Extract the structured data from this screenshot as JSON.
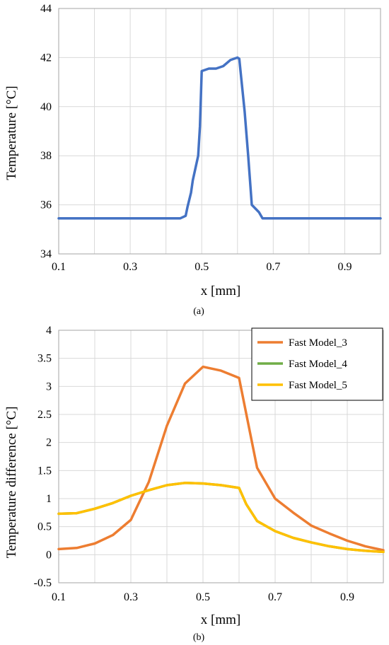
{
  "chart_data": [
    {
      "type": "line",
      "xlabel": "x [mm]",
      "ylabel": "Temperature [°C]",
      "caption": "(a)",
      "xlim": [
        0.1,
        1.0
      ],
      "ylim": [
        34,
        44
      ],
      "xticks": [
        0.1,
        0.3,
        0.5,
        0.7,
        0.9
      ],
      "yticks": [
        34,
        36,
        38,
        40,
        42,
        44
      ],
      "grid": true,
      "legend": "none",
      "series": [
        {
          "color": "#4472C4",
          "x": [
            0.1,
            0.44,
            0.455,
            0.46,
            0.47,
            0.475,
            0.49,
            0.495,
            0.5,
            0.52,
            0.54,
            0.56,
            0.58,
            0.6,
            0.605,
            0.62,
            0.63,
            0.64,
            0.66,
            0.67,
            0.7,
            0.8,
            0.9,
            1.0
          ],
          "y": [
            35.45,
            35.45,
            35.55,
            35.9,
            36.5,
            37.0,
            38.0,
            39.2,
            41.45,
            41.55,
            41.55,
            41.65,
            41.9,
            42.0,
            41.95,
            39.8,
            38.0,
            36.0,
            35.7,
            35.45,
            35.45,
            35.45,
            35.45,
            35.45
          ]
        }
      ]
    },
    {
      "type": "line",
      "xlabel": "x [mm]",
      "ylabel": "Temperature difference [°C]",
      "caption": "(b)",
      "xlim": [
        0.1,
        1.0
      ],
      "ylim": [
        -0.5,
        4
      ],
      "xticks": [
        0.1,
        0.3,
        0.5,
        0.7,
        0.9
      ],
      "yticks": [
        -0.5,
        0,
        0.5,
        1,
        1.5,
        2,
        2.5,
        3,
        3.5,
        4
      ],
      "ytick_labels": [
        "-0.5",
        "0",
        "0.5",
        "1",
        "1.5",
        "2",
        "2.5",
        "3",
        "3.5",
        "4"
      ],
      "grid": true,
      "legend": "top-right",
      "series": [
        {
          "name": "Fast Model_3",
          "color": "#ED7D31",
          "x": [
            0.1,
            0.15,
            0.2,
            0.25,
            0.3,
            0.35,
            0.4,
            0.45,
            0.5,
            0.55,
            0.6,
            0.65,
            0.7,
            0.75,
            0.8,
            0.85,
            0.9,
            0.95,
            1.0
          ],
          "y": [
            0.1,
            0.12,
            0.2,
            0.35,
            0.62,
            1.3,
            2.3,
            3.05,
            3.35,
            3.28,
            3.15,
            1.55,
            1.0,
            0.75,
            0.52,
            0.38,
            0.25,
            0.15,
            0.08
          ]
        },
        {
          "name": "Fast Model_4",
          "color": "#70AD47",
          "x": [
            0.1,
            0.15,
            0.2,
            0.25,
            0.3,
            0.35,
            0.4,
            0.45,
            0.5,
            0.55,
            0.6,
            0.62,
            0.65,
            0.7,
            0.75,
            0.8,
            0.85,
            0.9,
            0.95,
            1.0
          ],
          "y": [
            0.73,
            0.74,
            0.82,
            0.92,
            1.05,
            1.15,
            1.24,
            1.28,
            1.27,
            1.24,
            1.19,
            0.9,
            0.6,
            0.42,
            0.3,
            0.22,
            0.15,
            0.1,
            0.07,
            0.05
          ]
        },
        {
          "name": "Fast Model_5",
          "color": "#FFC000",
          "x": [
            0.1,
            0.15,
            0.2,
            0.25,
            0.3,
            0.35,
            0.4,
            0.45,
            0.5,
            0.55,
            0.6,
            0.62,
            0.65,
            0.7,
            0.75,
            0.8,
            0.85,
            0.9,
            0.95,
            1.0
          ],
          "y": [
            0.73,
            0.74,
            0.82,
            0.92,
            1.05,
            1.15,
            1.24,
            1.28,
            1.27,
            1.24,
            1.19,
            0.9,
            0.6,
            0.42,
            0.3,
            0.22,
            0.15,
            0.1,
            0.07,
            0.05
          ]
        }
      ]
    }
  ]
}
